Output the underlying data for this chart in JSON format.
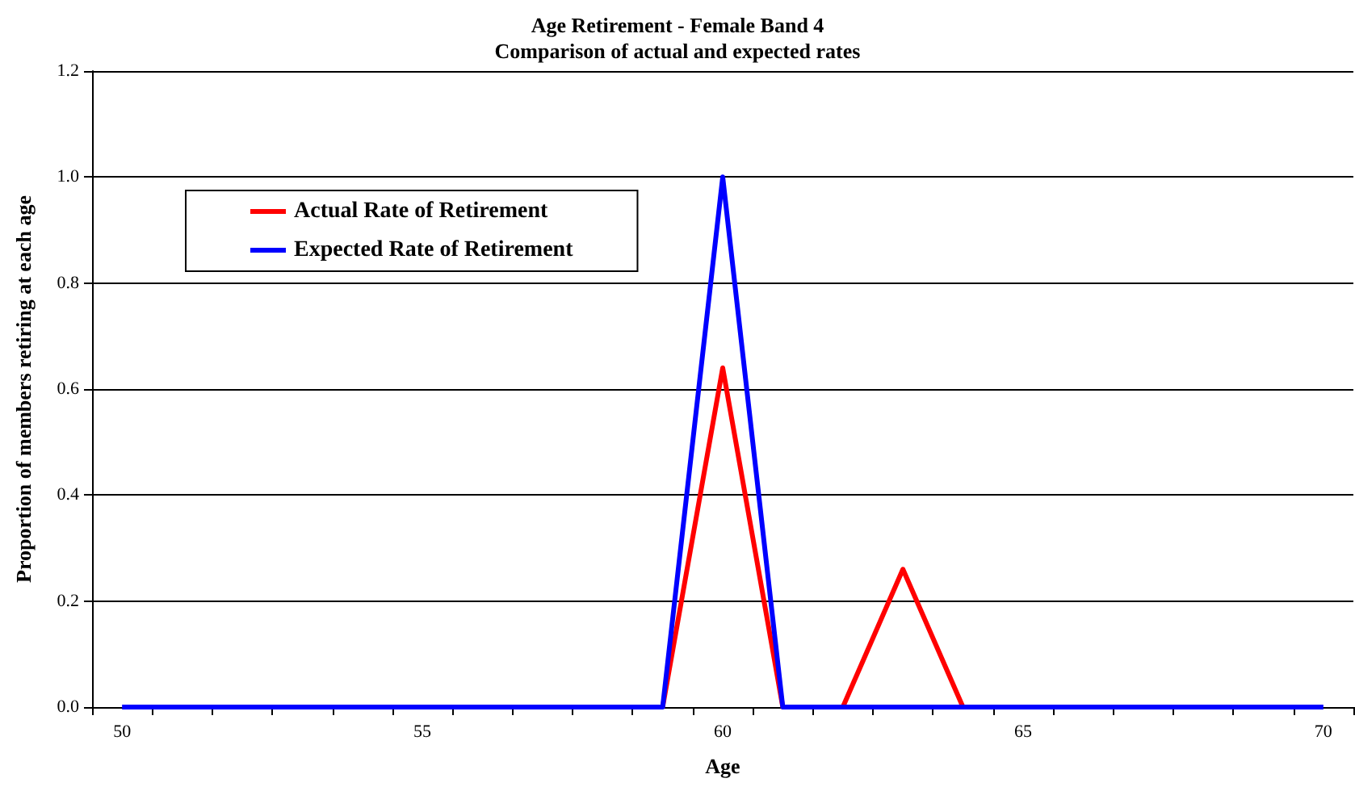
{
  "chart_data": {
    "type": "line",
    "title": "Age Retirement - Female Band 4",
    "subtitle": "Comparison of actual and expected rates",
    "xlabel": "Age",
    "ylabel": "Proportion of members retiring at each age",
    "categories": [
      "50",
      null,
      null,
      null,
      null,
      "55",
      null,
      null,
      null,
      null,
      "60",
      null,
      null,
      null,
      null,
      "65",
      null,
      null,
      null,
      null,
      "70"
    ],
    "series": [
      {
        "name": "Actual Rate of Retirement",
        "color": "#ff0000",
        "values": [
          null,
          null,
          null,
          null,
          null,
          null,
          null,
          null,
          null,
          0,
          0.64,
          0,
          0,
          0.26,
          0,
          null,
          null,
          null,
          null,
          null,
          null
        ]
      },
      {
        "name": "Expected Rate of Retirement",
        "color": "#0000ff",
        "values": [
          0,
          0,
          0,
          0,
          0,
          0,
          0,
          0,
          0,
          0,
          1,
          0,
          0,
          0,
          0,
          0,
          0,
          0,
          0,
          0,
          0
        ]
      }
    ],
    "ylim": [
      0,
      1.2
    ],
    "yticks": [
      {
        "value": 0,
        "label": "0.0"
      },
      {
        "value": 0.2,
        "label": "0.2"
      },
      {
        "value": 0.4,
        "label": "0.4"
      },
      {
        "value": 0.6,
        "label": "0.6"
      },
      {
        "value": 0.8,
        "label": "0.8"
      },
      {
        "value": 1,
        "label": "1.0"
      },
      {
        "value": 1.2,
        "label": "1.2"
      }
    ],
    "grid": "y",
    "legend": "top left",
    "marker": "none",
    "line_style": "solid"
  }
}
